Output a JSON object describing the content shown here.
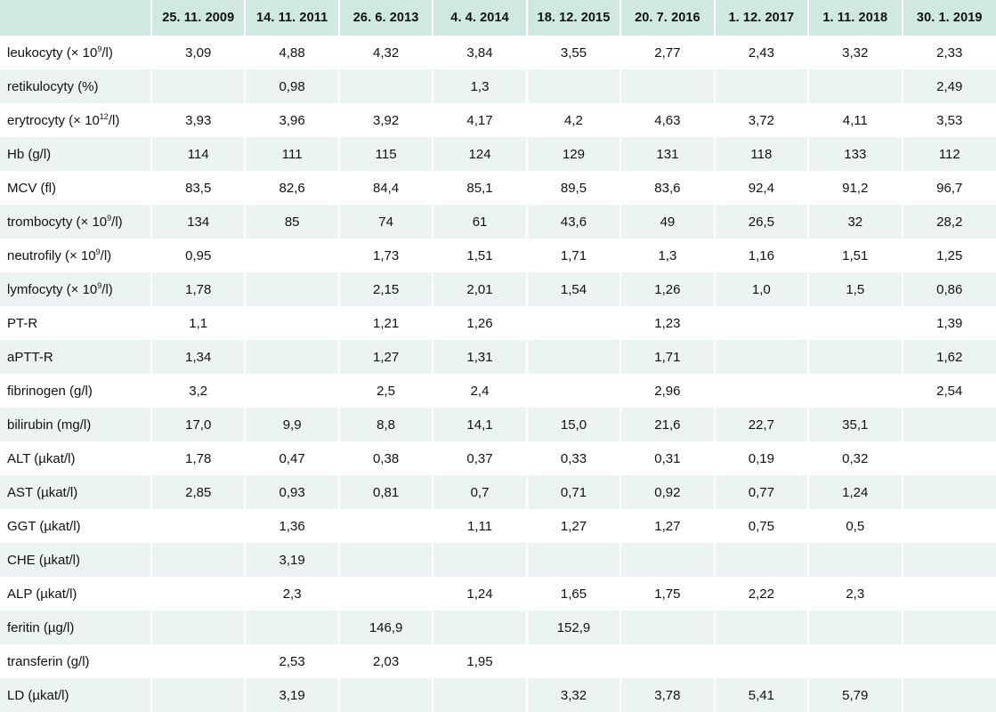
{
  "table": {
    "columns": [
      "25. 11. 2009",
      "14. 11. 2011",
      "26. 6. 2013",
      "4. 4. 2014",
      "18. 12. 2015",
      "20. 7. 2016",
      "1. 12. 2017",
      "1. 11. 2018",
      "30. 1. 2019"
    ],
    "rows": [
      {
        "label": "leukocyty (× 10",
        "sup": "9",
        "suffix": "/l)",
        "values": [
          "3,09",
          "4,88",
          "4,32",
          "3,84",
          "3,55",
          "2,77",
          "2,43",
          "3,32",
          "2,33"
        ]
      },
      {
        "label": "retikulocyty (%)",
        "sup": "",
        "suffix": "",
        "values": [
          "",
          "0,98",
          "",
          "1,3",
          "",
          "",
          "",
          "",
          "2,49"
        ]
      },
      {
        "label": "erytrocyty (× 10",
        "sup": "12",
        "suffix": "/l)",
        "values": [
          "3,93",
          "3,96",
          "3,92",
          "4,17",
          "4,2",
          "4,63",
          "3,72",
          "4,11",
          "3,53"
        ]
      },
      {
        "label": "Hb (g/l)",
        "sup": "",
        "suffix": "",
        "values": [
          "114",
          "111",
          "115",
          "124",
          "129",
          "131",
          "118",
          "133",
          "112"
        ]
      },
      {
        "label": "MCV (fl)",
        "sup": "",
        "suffix": "",
        "values": [
          "83,5",
          "82,6",
          "84,4",
          "85,1",
          "89,5",
          "83,6",
          "92,4",
          "91,2",
          "96,7"
        ]
      },
      {
        "label": "trombocyty (× 10",
        "sup": "9",
        "suffix": "/l)",
        "values": [
          "134",
          "85",
          "74",
          "61",
          "43,6",
          "49",
          "26,5",
          "32",
          "28,2"
        ]
      },
      {
        "label": "neutrofily (× 10",
        "sup": "9",
        "suffix": "/l)",
        "values": [
          "0,95",
          "",
          "1,73",
          "1,51",
          "1,71",
          "1,3",
          "1,16",
          "1,51",
          "1,25"
        ]
      },
      {
        "label": "lymfocyty (× 10",
        "sup": "9",
        "suffix": "/l)",
        "values": [
          "1,78",
          "",
          "2,15",
          "2,01",
          "1,54",
          "1,26",
          "1,0",
          "1,5",
          "0,86"
        ]
      },
      {
        "label": "PT-R",
        "sup": "",
        "suffix": "",
        "values": [
          "1,1",
          "",
          "1,21",
          "1,26",
          "",
          "1,23",
          "",
          "",
          "1,39"
        ]
      },
      {
        "label": "aPTT-R",
        "sup": "",
        "suffix": "",
        "values": [
          "1,34",
          "",
          "1,27",
          "1,31",
          "",
          "1,71",
          "",
          "",
          "1,62"
        ]
      },
      {
        "label": "fibrinogen (g/l)",
        "sup": "",
        "suffix": "",
        "values": [
          "3,2",
          "",
          "2,5",
          "2,4",
          "",
          "2,96",
          "",
          "",
          "2,54"
        ]
      },
      {
        "label": "bilirubin (mg/l)",
        "sup": "",
        "suffix": "",
        "values": [
          "17,0",
          "9,9",
          "8,8",
          "14,1",
          "15,0",
          "21,6",
          "22,7",
          "35,1",
          ""
        ]
      },
      {
        "label": "ALT (µkat/l)",
        "sup": "",
        "suffix": "",
        "values": [
          "1,78",
          "0,47",
          "0,38",
          "0,37",
          "0,33",
          "0,31",
          "0,19",
          "0,32",
          ""
        ]
      },
      {
        "label": "AST (µkat/l)",
        "sup": "",
        "suffix": "",
        "values": [
          "2,85",
          "0,93",
          "0,81",
          "0,7",
          "0,71",
          "0,92",
          "0,77",
          "1,24",
          ""
        ]
      },
      {
        "label": "GGT (µkat/l)",
        "sup": "",
        "suffix": "",
        "values": [
          "",
          "1,36",
          "",
          "1,11",
          "1,27",
          "1,27",
          "0,75",
          "0,5",
          ""
        ]
      },
      {
        "label": "CHE (µkat/l)",
        "sup": "",
        "suffix": "",
        "values": [
          "",
          "3,19",
          "",
          "",
          "",
          "",
          "",
          "",
          ""
        ]
      },
      {
        "label": "ALP (µkat/l)",
        "sup": "",
        "suffix": "",
        "values": [
          "",
          "2,3",
          "",
          "1,24",
          "1,65",
          "1,75",
          "2,22",
          "2,3",
          ""
        ]
      },
      {
        "label": "feritin (µg/l)",
        "sup": "",
        "suffix": "",
        "values": [
          "",
          "",
          "146,9",
          "",
          "152,9",
          "",
          "",
          "",
          ""
        ]
      },
      {
        "label": "transferin (g/l)",
        "sup": "",
        "suffix": "",
        "values": [
          "",
          "2,53",
          "2,03",
          "1,95",
          "",
          "",
          "",
          "",
          ""
        ]
      },
      {
        "label": "LD (µkat/l)",
        "sup": "",
        "suffix": "",
        "values": [
          "",
          "3,19",
          "",
          "",
          "3,32",
          "3,78",
          "5,41",
          "5,79",
          ""
        ]
      }
    ]
  },
  "colors": {
    "header_bg": "#cfe8e1",
    "stripe_bg": "#ebf4f2",
    "row_bg": "#ffffff"
  }
}
